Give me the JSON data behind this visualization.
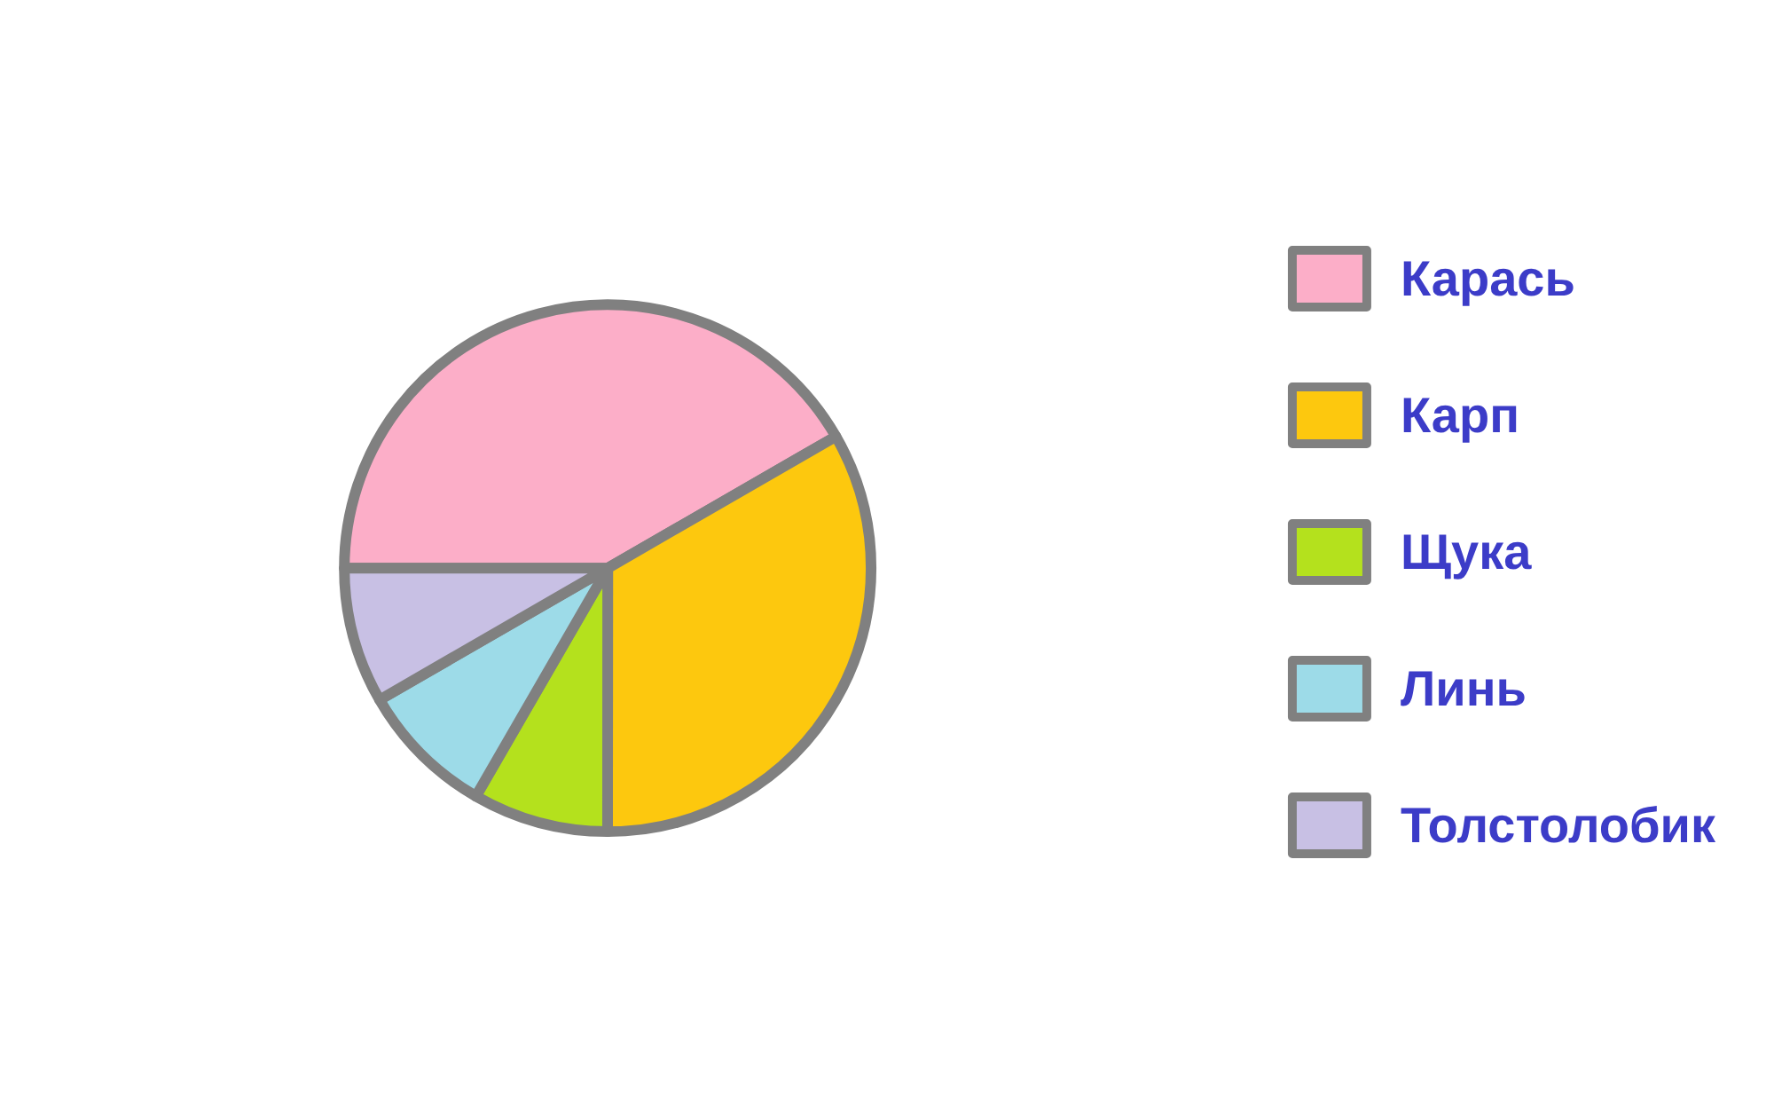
{
  "chart_data": {
    "type": "pie",
    "categories": [
      "Карась",
      "Карп",
      "Щука",
      "Линь",
      "Толстолобик"
    ],
    "values": [
      41.67,
      33.33,
      8.33,
      8.33,
      8.33
    ],
    "colors": [
      "#fcaec8",
      "#fdc80e",
      "#b4e11d",
      "#9ddbe8",
      "#c8c0e4"
    ],
    "legend": "right"
  }
}
